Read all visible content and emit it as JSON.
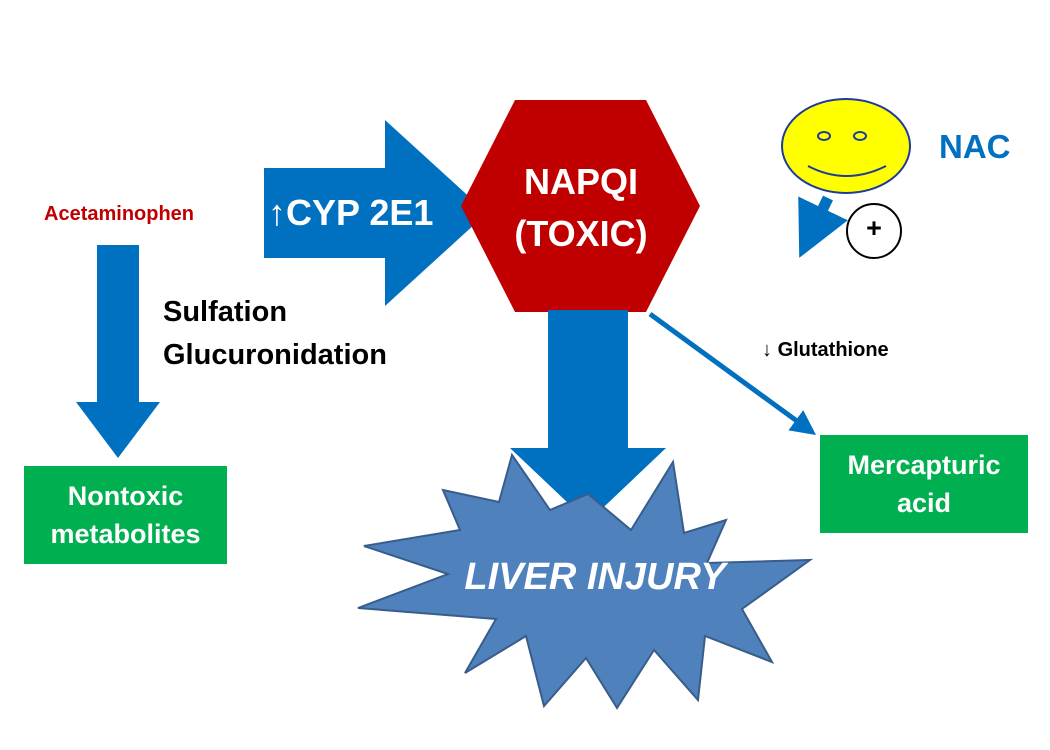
{
  "diagram": {
    "start": "Acetaminophen",
    "pathway_main": [
      "Sulfation",
      "Glucuronidation"
    ],
    "enzyme": "CYP 2E1",
    "enzyme_arrow": "↑",
    "toxic_metabolite": [
      "NAPQI",
      "(TOXIC)"
    ],
    "outcome_nontoxic": [
      "Nontoxic",
      "metabolites"
    ],
    "outcome_injury": "LIVER INJURY",
    "glutathione": "Glutathione",
    "glutathione_arrow": "↓",
    "conjugate": [
      "Mercapturic",
      "acid"
    ],
    "antidote": "NAC",
    "antidote_effect": "+",
    "colors": {
      "arrow_blue": "#0070c0",
      "hexagon_red": "#c00000",
      "box_green": "#00b050",
      "star_blue": "#4f81bd",
      "face_yellow": "#ffff00",
      "acetaminophen_red": "#c00000"
    }
  }
}
